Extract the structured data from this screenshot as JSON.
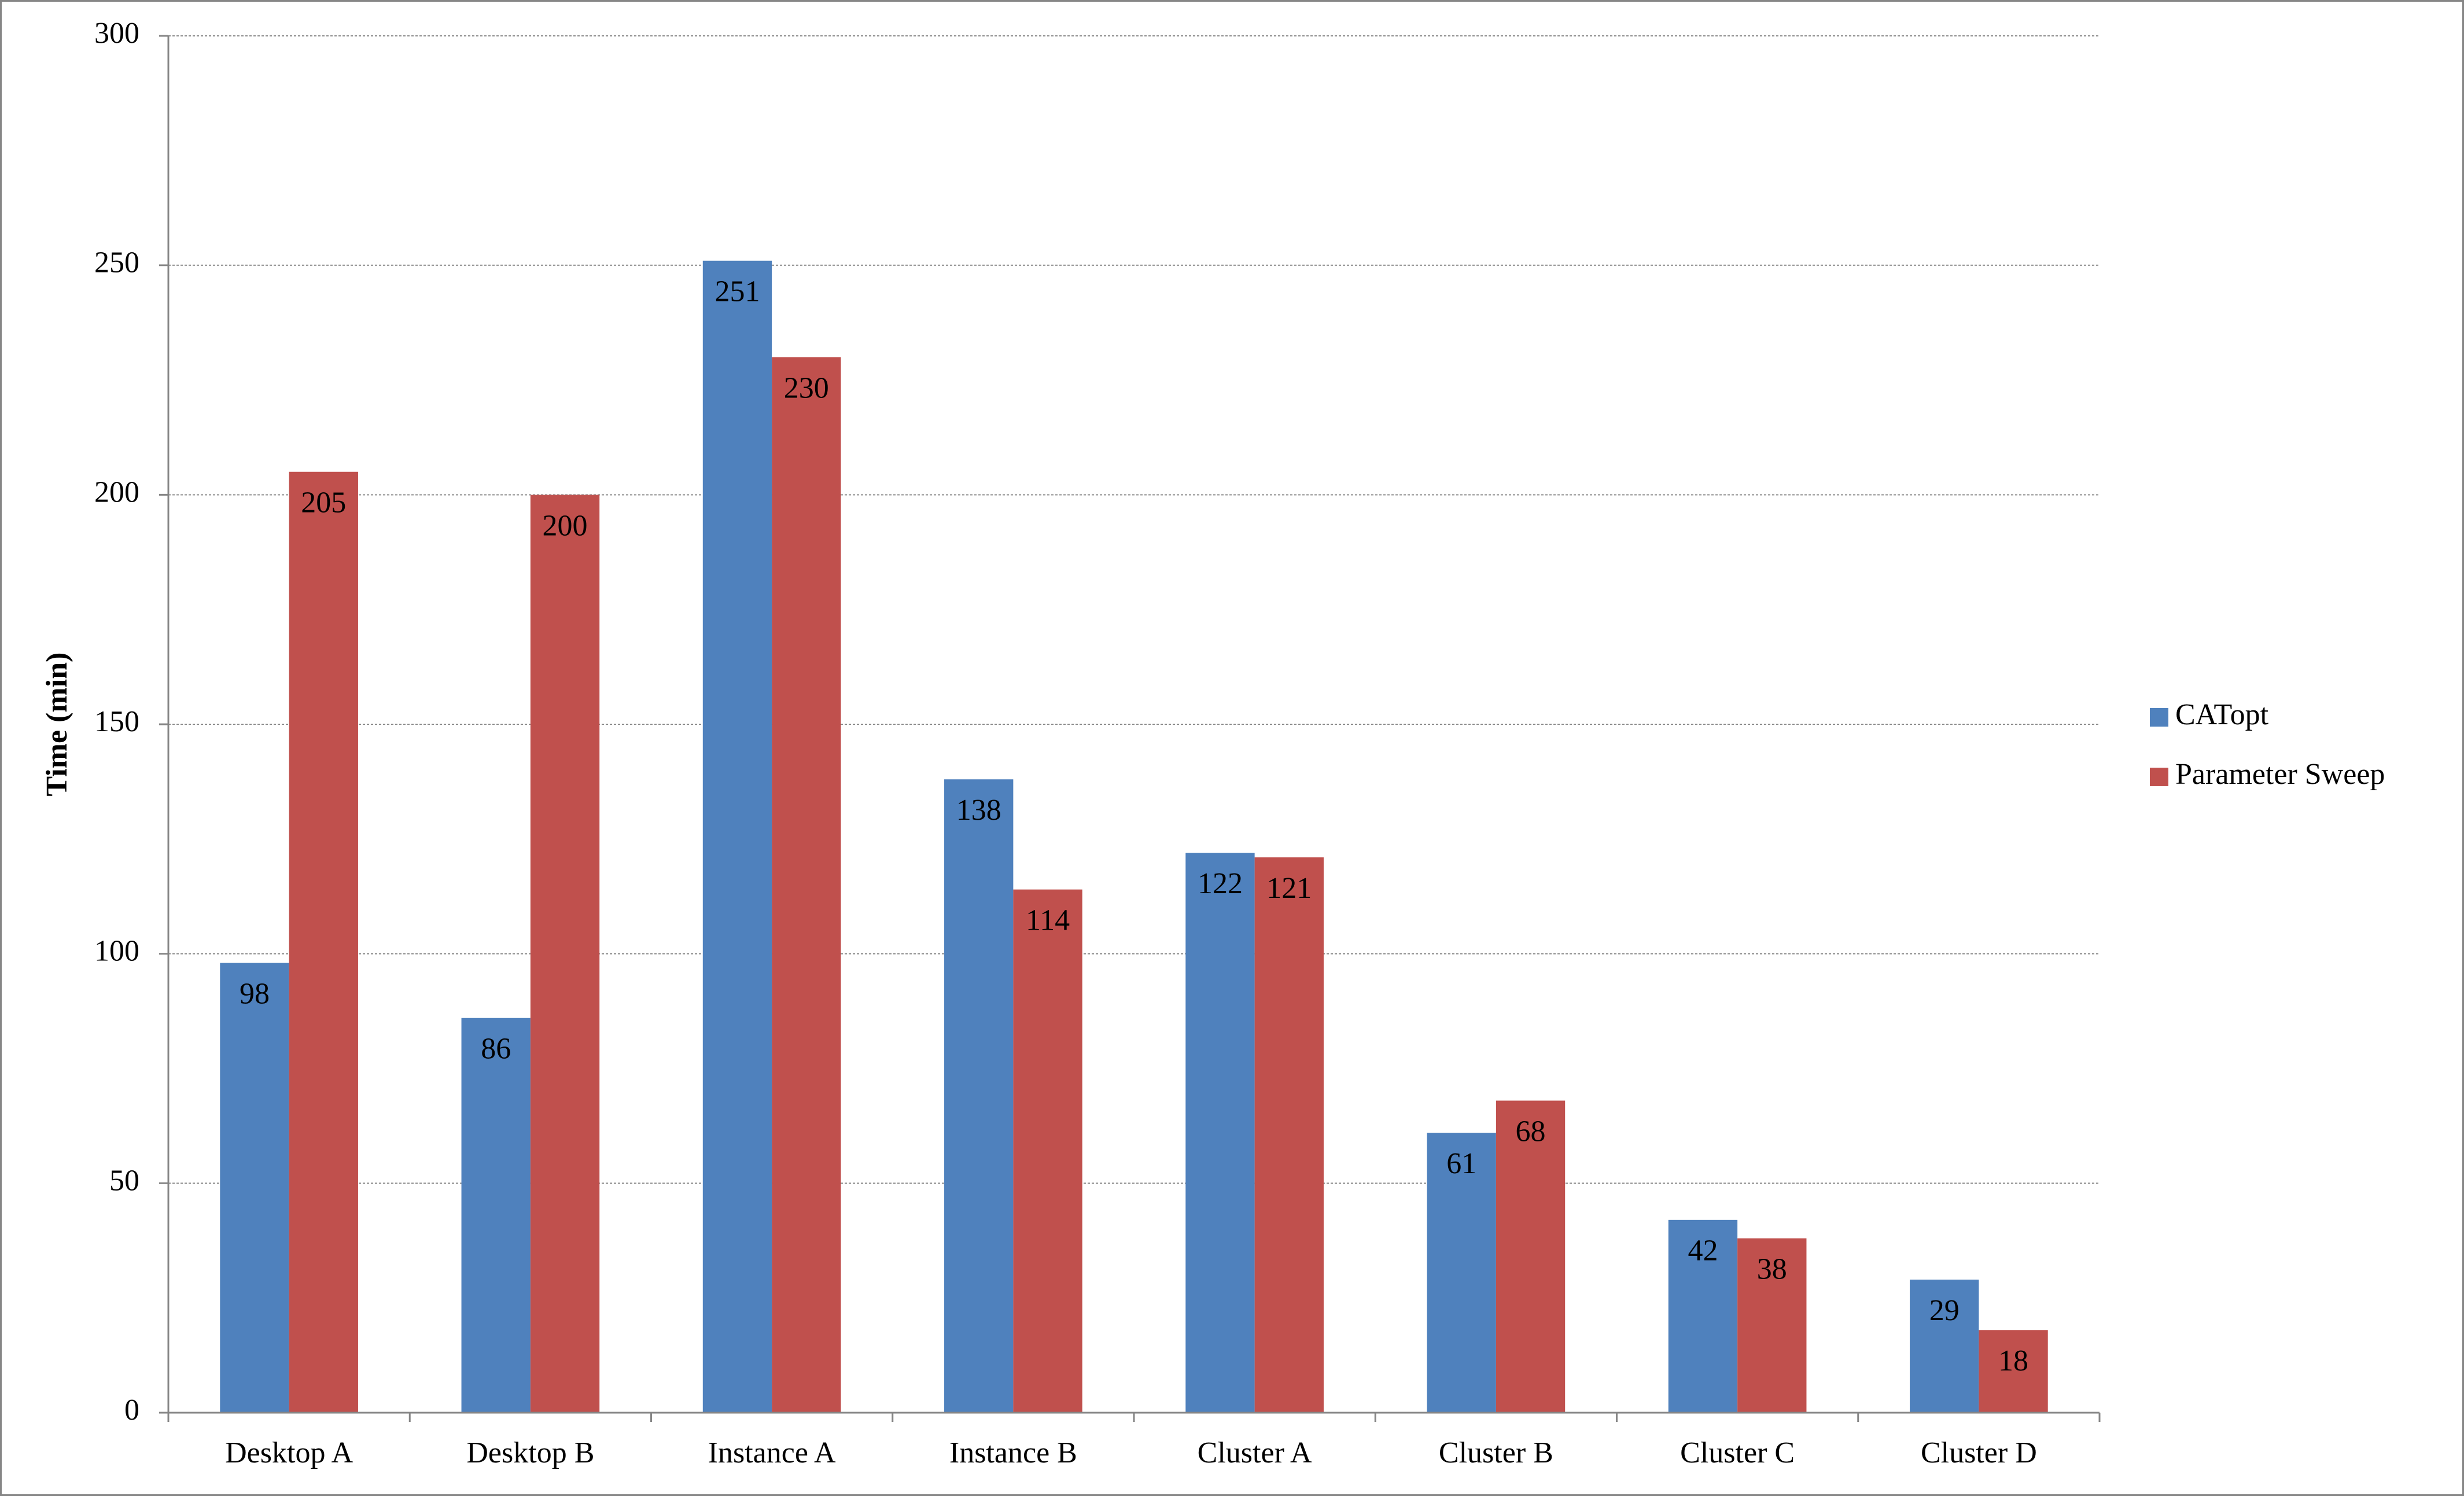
{
  "chart_data": {
    "type": "bar",
    "y_label": "Time (min)",
    "categories": [
      "Desktop A",
      "Desktop B",
      "Instance A",
      "Instance B",
      "Cluster A",
      "Cluster B",
      "Cluster C",
      "Cluster D"
    ],
    "series": [
      {
        "name": "CATopt",
        "color": "#4f81bd",
        "values": [
          98,
          86,
          251,
          138,
          122,
          61,
          42,
          29
        ]
      },
      {
        "name": "Parameter Sweep",
        "color": "#c0504d",
        "values": [
          205,
          200,
          230,
          114,
          121,
          68,
          38,
          18
        ]
      }
    ],
    "ylim": [
      0,
      300
    ],
    "yticks": [
      0,
      50,
      100,
      150,
      200,
      250,
      300
    ],
    "grid": true,
    "legend": "right"
  }
}
